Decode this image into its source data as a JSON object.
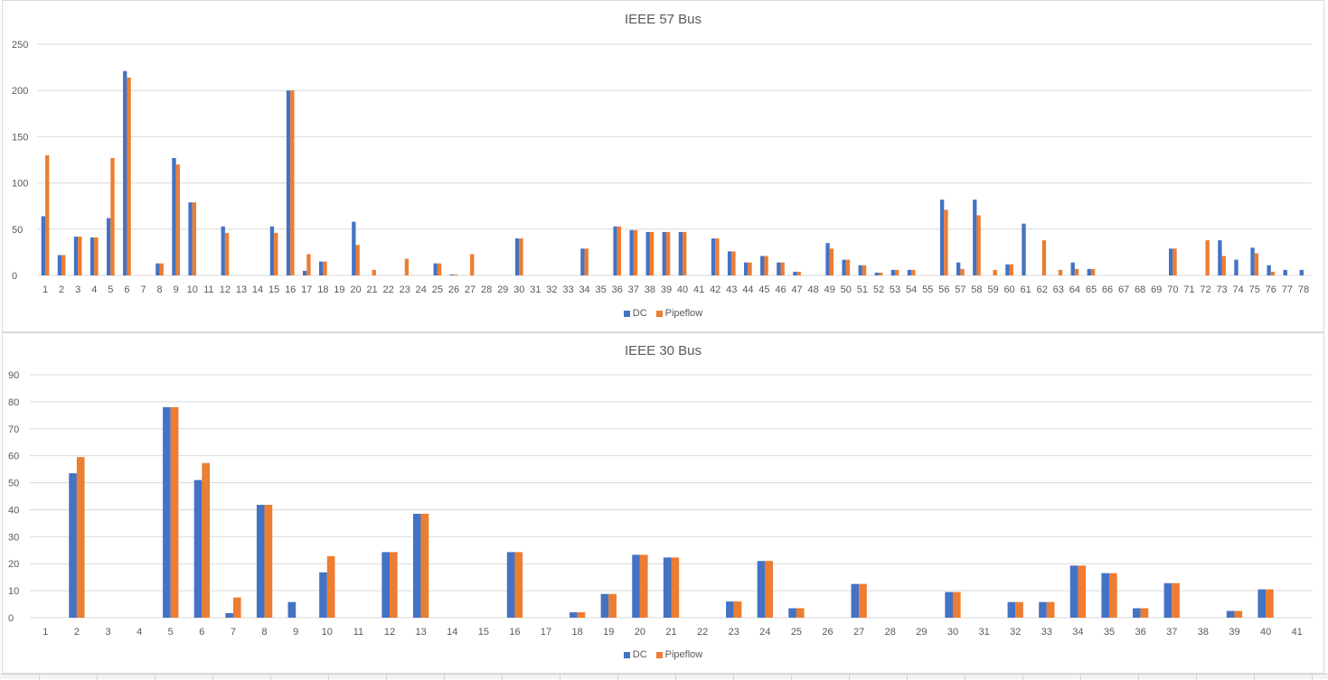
{
  "colors": {
    "dc": "#4472C4",
    "pipeflow": "#ED7D31",
    "grid": "#d9d9d9",
    "text": "#595959"
  },
  "chart_data": [
    {
      "type": "bar",
      "title": "IEEE 57 Bus",
      "xlabel": "",
      "ylabel": "",
      "ylim": [
        0,
        250
      ],
      "yticks": [
        0,
        50,
        100,
        150,
        200,
        250
      ],
      "grid": true,
      "legend_position": "bottom",
      "categories": [
        "1",
        "2",
        "3",
        "4",
        "5",
        "6",
        "7",
        "8",
        "9",
        "10",
        "11",
        "12",
        "13",
        "14",
        "15",
        "16",
        "17",
        "18",
        "19",
        "20",
        "21",
        "22",
        "23",
        "24",
        "25",
        "26",
        "27",
        "28",
        "29",
        "30",
        "31",
        "32",
        "33",
        "34",
        "35",
        "36",
        "37",
        "38",
        "39",
        "40",
        "41",
        "42",
        "43",
        "44",
        "45",
        "46",
        "47",
        "48",
        "49",
        "50",
        "51",
        "52",
        "53",
        "54",
        "55",
        "56",
        "57",
        "58",
        "59",
        "60",
        "61",
        "62",
        "63",
        "64",
        "65",
        "66",
        "67",
        "68",
        "69",
        "70",
        "71",
        "72",
        "73",
        "74",
        "75",
        "76",
        "77",
        "78"
      ],
      "series": [
        {
          "name": "DC",
          "values": [
            64,
            22,
            42,
            41,
            62,
            221,
            0,
            13,
            127,
            79,
            0,
            53,
            0,
            0,
            53,
            200,
            5,
            15,
            0,
            58,
            0,
            0,
            0,
            0,
            13,
            1,
            0,
            0,
            0,
            40,
            0,
            0,
            0,
            29,
            0,
            53,
            49,
            47,
            47,
            47,
            0,
            40,
            26,
            14,
            21,
            14,
            4,
            0,
            35,
            17,
            11,
            3,
            6,
            6,
            0,
            82,
            14,
            82,
            0,
            12,
            56,
            0,
            0,
            14,
            7,
            0,
            0,
            0,
            0,
            29,
            0,
            0,
            38,
            17,
            30,
            11,
            6,
            6
          ]
        },
        {
          "name": "Pipeflow",
          "values": [
            130,
            22,
            42,
            41,
            127,
            214,
            0,
            13,
            120,
            79,
            0,
            46,
            0,
            0,
            46,
            200,
            23,
            15,
            0,
            33,
            6,
            0,
            18,
            0,
            13,
            1,
            23,
            0,
            0,
            40,
            0,
            0,
            0,
            29,
            0,
            53,
            49,
            47,
            47,
            47,
            0,
            40,
            26,
            14,
            21,
            14,
            4,
            0,
            29,
            17,
            11,
            3,
            6,
            6,
            0,
            71,
            7,
            65,
            6,
            12,
            0,
            38,
            6,
            7,
            7,
            0,
            0,
            0,
            0,
            29,
            0,
            38,
            21,
            0,
            24,
            4,
            0,
            0
          ]
        }
      ]
    },
    {
      "type": "bar",
      "title": "IEEE 30 Bus",
      "xlabel": "",
      "ylabel": "",
      "ylim": [
        0,
        90
      ],
      "yticks": [
        0,
        10,
        20,
        30,
        40,
        50,
        60,
        70,
        80,
        90
      ],
      "grid": true,
      "legend_position": "bottom",
      "categories": [
        "1",
        "2",
        "3",
        "4",
        "5",
        "6",
        "7",
        "8",
        "9",
        "10",
        "11",
        "12",
        "13",
        "14",
        "15",
        "16",
        "17",
        "18",
        "19",
        "20",
        "21",
        "22",
        "23",
        "24",
        "25",
        "26",
        "27",
        "28",
        "29",
        "30",
        "31",
        "32",
        "33",
        "34",
        "35",
        "36",
        "37",
        "38",
        "39",
        "40",
        "41"
      ],
      "series": [
        {
          "name": "DC",
          "values": [
            0,
            53.5,
            0,
            0,
            78,
            51,
            1.7,
            41.8,
            5.8,
            16.8,
            0,
            24.3,
            38.5,
            0,
            0,
            24.3,
            0,
            2,
            8.8,
            23.3,
            22.3,
            0,
            6,
            21,
            3.5,
            0,
            12.5,
            0,
            0,
            9.5,
            0,
            5.8,
            5.8,
            19.3,
            16.5,
            3.5,
            12.8,
            0,
            2.5,
            10.5,
            0
          ]
        },
        {
          "name": "Pipeflow",
          "values": [
            0,
            59.5,
            0,
            0,
            78,
            57.3,
            7.5,
            41.8,
            0,
            22.8,
            0,
            24.3,
            38.5,
            0,
            0,
            24.3,
            0,
            2,
            8.8,
            23.3,
            22.3,
            0,
            6,
            21,
            3.5,
            0,
            12.5,
            0,
            0,
            9.5,
            0,
            5.8,
            5.8,
            19.3,
            16.5,
            3.5,
            12.8,
            0,
            2.5,
            10.5,
            0
          ]
        }
      ]
    }
  ]
}
